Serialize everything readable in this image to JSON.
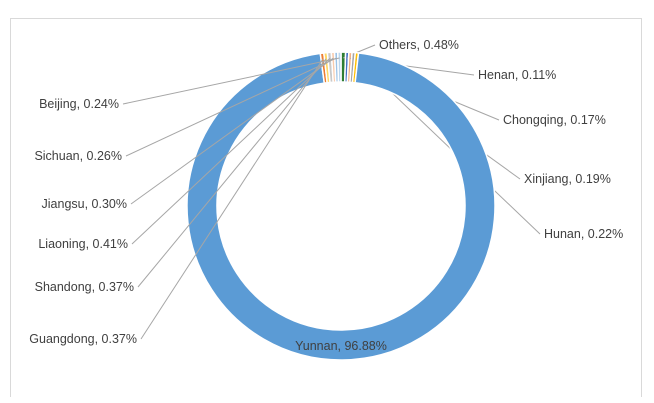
{
  "chart_data": {
    "type": "pie",
    "donut": true,
    "title": "",
    "slices": [
      {
        "label": "Others",
        "value": 0.48,
        "display": "Others, 0.48%",
        "color": "#2e7d32"
      },
      {
        "label": "Henan",
        "value": 0.11,
        "display": "Henan, 0.11%",
        "color": "#4472c4"
      },
      {
        "label": "Chongqing",
        "value": 0.17,
        "display": "Chongqing, 0.17%",
        "color": "#f4b183"
      },
      {
        "label": "Xinjiang",
        "value": 0.19,
        "display": "Xinjiang, 0.19%",
        "color": "#a5a5a5"
      },
      {
        "label": "Hunan",
        "value": 0.22,
        "display": "Hunan, 0.22%",
        "color": "#ffc000"
      },
      {
        "label": "Yunnan",
        "value": 96.88,
        "display": "Yunnan, 96.88%",
        "color": "#5b9bd5"
      },
      {
        "label": "Guangdong",
        "value": 0.37,
        "display": "Guangdong, 0.37%",
        "color": "#ed7d31"
      },
      {
        "label": "Shandong",
        "value": 0.37,
        "display": "Shandong, 0.37%",
        "color": "#ffd966"
      },
      {
        "label": "Liaoning",
        "value": 0.41,
        "display": "Liaoning, 0.41%",
        "color": "#c9c9c9"
      },
      {
        "label": "Jiangsu",
        "value": 0.3,
        "display": "Jiangsu, 0.30%",
        "color": "#f8cbad"
      },
      {
        "label": "Sichuan",
        "value": 0.26,
        "display": "Sichuan, 0.26%",
        "color": "#9dc3e6"
      },
      {
        "label": "Beijing",
        "value": 0.24,
        "display": "Beijing, 0.24%",
        "color": "#bdd7ee"
      }
    ],
    "legend": "none",
    "data_labels": "outside with leader lines"
  }
}
